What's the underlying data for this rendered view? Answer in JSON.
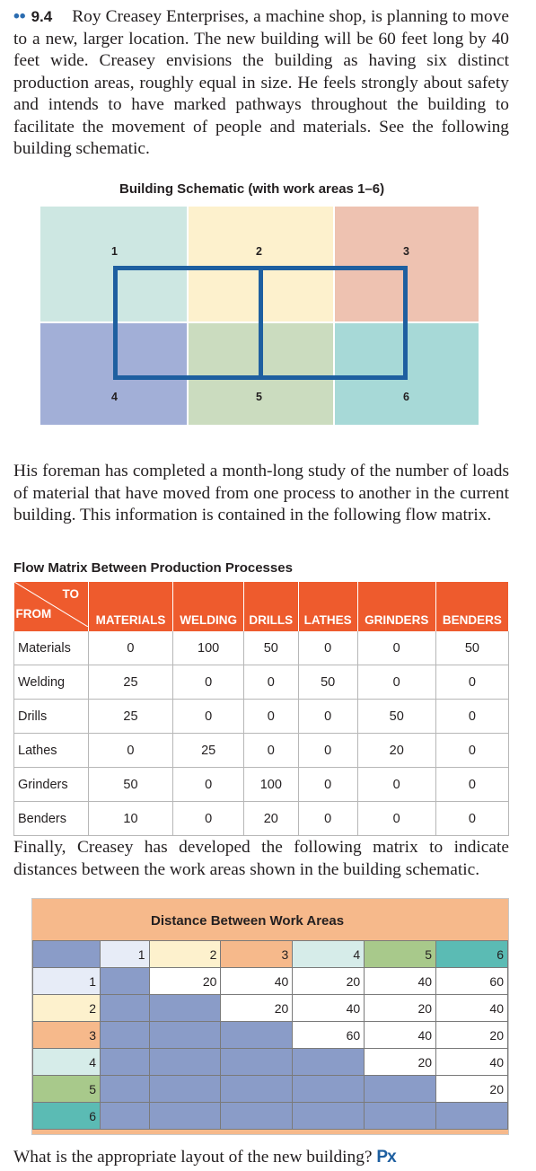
{
  "problem": {
    "dots": "••",
    "number": "9.4",
    "text": "Roy Creasey Enterprises, a machine shop, is planning to move to a new, larger location. The new building will be 60 feet long by 40 feet wide. Creasey envisions the building as having six distinct production areas, roughly equal in size. He feels strongly about safety and intends to have marked pathways throughout the building to facilitate the movement of people and materials. See the following building schematic."
  },
  "schematic": {
    "caption": "Building Schematic (with work areas 1–6)",
    "areas": [
      "1",
      "2",
      "3",
      "4",
      "5",
      "6"
    ],
    "colors": [
      "#cde7e2",
      "#fdf1cd",
      "#eec2b1",
      "#a2afd7",
      "#cbdcbf",
      "#a7d9d7"
    ],
    "path_color": "#1e5fa0"
  },
  "para2": "His foreman has completed a month-long study of the number of loads of material that have moved from one process to another in the current building. This information is contained in the following flow matrix.",
  "flow": {
    "caption": "Flow Matrix Between Production Processes",
    "to_label": "TO",
    "from_label": "FROM",
    "columns": [
      "MATERIALS",
      "WELDING",
      "DRILLS",
      "LATHES",
      "GRINDERS",
      "BENDERS"
    ],
    "rows": [
      {
        "label": "Materials",
        "values": [
          "0",
          "100",
          "50",
          "0",
          "0",
          "50"
        ]
      },
      {
        "label": "Welding",
        "values": [
          "25",
          "0",
          "0",
          "50",
          "0",
          "0"
        ]
      },
      {
        "label": "Drills",
        "values": [
          "25",
          "0",
          "0",
          "0",
          "50",
          "0"
        ]
      },
      {
        "label": "Lathes",
        "values": [
          "0",
          "25",
          "0",
          "0",
          "20",
          "0"
        ]
      },
      {
        "label": "Grinders",
        "values": [
          "50",
          "0",
          "100",
          "0",
          "0",
          "0"
        ]
      },
      {
        "label": "Benders",
        "values": [
          "10",
          "0",
          "20",
          "0",
          "0",
          "0"
        ]
      }
    ]
  },
  "para3": "Finally, Creasey has developed the following matrix to indicate distances between the work areas shown in the building schematic.",
  "distance": {
    "caption": "Distance Between Work Areas",
    "headers": [
      "1",
      "2",
      "3",
      "4",
      "5",
      "6"
    ],
    "rows": [
      {
        "label": "1",
        "values": [
          "",
          "20",
          "40",
          "20",
          "40",
          "60"
        ]
      },
      {
        "label": "2",
        "values": [
          "",
          "",
          "20",
          "40",
          "20",
          "40"
        ]
      },
      {
        "label": "3",
        "values": [
          "",
          "",
          "",
          "60",
          "40",
          "20"
        ]
      },
      {
        "label": "4",
        "values": [
          "",
          "",
          "",
          "",
          "20",
          "40"
        ]
      },
      {
        "label": "5",
        "values": [
          "",
          "",
          "",
          "",
          "",
          "20"
        ]
      },
      {
        "label": "6",
        "values": [
          "",
          "",
          "",
          "",
          "",
          ""
        ]
      }
    ]
  },
  "question": "What is the appropriate layout of the new building?",
  "px_logo": "Px"
}
